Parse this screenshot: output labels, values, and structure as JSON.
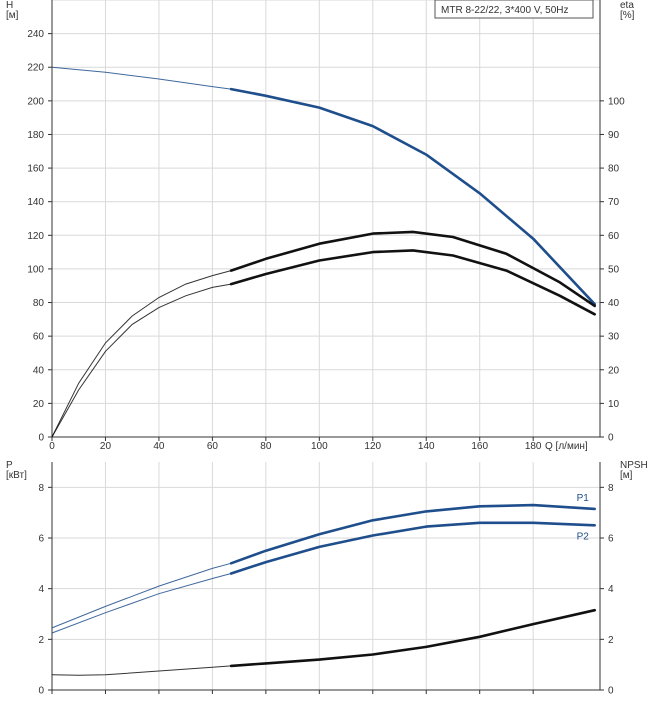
{
  "colors": {
    "blue": "#1f4e8c",
    "black": "#111111",
    "grid": "#d9d9d9"
  },
  "chart_data": [
    {
      "type": "line",
      "legend_box": "MTR 8-22/22, 3*400 V, 50Hz",
      "xlabel": "Q [л/мин]",
      "ylabel_left": [
        "H",
        "[м]"
      ],
      "ylabel_right": [
        "eta",
        "[%]"
      ],
      "xlim": [
        0,
        205
      ],
      "ylim_left": [
        0,
        260
      ],
      "ylim_right": [
        0,
        130
      ],
      "x_ticks": [
        "0",
        "20",
        "40",
        "60",
        "80",
        "100",
        "120",
        "140",
        "160",
        "180"
      ],
      "y_left_ticks": [
        "0",
        "20",
        "40",
        "60",
        "80",
        "100",
        "120",
        "140",
        "160",
        "180",
        "200",
        "220",
        "240"
      ],
      "y_right_ticks": [
        "0",
        "10",
        "20",
        "30",
        "40",
        "50",
        "60",
        "70",
        "80",
        "90",
        "100"
      ],
      "grid": true,
      "duty_range": [
        67,
        203
      ],
      "series": [
        {
          "axis": "left",
          "color": "blue",
          "x": [
            0,
            20,
            40,
            60,
            67,
            80,
            100,
            120,
            140,
            160,
            180,
            203
          ],
          "y": [
            220,
            217,
            213,
            208.5,
            207,
            203,
            196,
            185,
            168,
            145,
            118,
            79
          ]
        },
        {
          "axis": "right",
          "color": "black",
          "x": [
            0,
            10,
            20,
            30,
            40,
            50,
            60,
            67,
            80,
            100,
            120,
            135,
            150,
            170,
            190,
            203
          ],
          "y": [
            0,
            16,
            28,
            36,
            41.5,
            45.5,
            48,
            49.5,
            53,
            57.5,
            60.5,
            61,
            59.5,
            54.5,
            46,
            39
          ]
        },
        {
          "axis": "right",
          "color": "black",
          "x": [
            0,
            10,
            20,
            30,
            40,
            50,
            60,
            67,
            80,
            100,
            120,
            135,
            150,
            170,
            190,
            203
          ],
          "y": [
            0,
            14,
            25.5,
            33.5,
            38.5,
            42,
            44.5,
            45.5,
            48.5,
            52.5,
            55,
            55.5,
            54,
            49.5,
            42,
            36.5
          ]
        }
      ]
    },
    {
      "type": "line",
      "xlabel": "",
      "ylabel_left": [
        "P",
        "[кВт]"
      ],
      "ylabel_right": [
        "NPSH",
        "[м]"
      ],
      "xlim": [
        0,
        205
      ],
      "ylim_left": [
        0,
        9
      ],
      "ylim_right": [
        0,
        9
      ],
      "y_left_ticks": [
        "0",
        "2",
        "4",
        "6",
        "8"
      ],
      "y_right_ticks": [
        "0",
        "2",
        "4",
        "6",
        "8"
      ],
      "grid": true,
      "duty_range": [
        67,
        203
      ],
      "series": [
        {
          "name": "P1",
          "axis": "left",
          "color": "blue",
          "x": [
            0,
            20,
            40,
            60,
            67,
            80,
            100,
            120,
            140,
            160,
            180,
            203
          ],
          "y": [
            2.45,
            3.3,
            4.1,
            4.8,
            5.0,
            5.5,
            6.15,
            6.7,
            7.05,
            7.25,
            7.3,
            7.15
          ]
        },
        {
          "name": "P2",
          "axis": "left",
          "color": "blue",
          "x": [
            0,
            20,
            40,
            60,
            67,
            80,
            100,
            120,
            140,
            160,
            180,
            203
          ],
          "y": [
            2.25,
            3.05,
            3.8,
            4.4,
            4.6,
            5.05,
            5.65,
            6.1,
            6.45,
            6.6,
            6.6,
            6.5
          ]
        },
        {
          "axis": "right",
          "color": "black",
          "x": [
            0,
            10,
            20,
            40,
            60,
            67,
            80,
            100,
            120,
            140,
            160,
            180,
            203
          ],
          "y": [
            0.6,
            0.58,
            0.6,
            0.75,
            0.9,
            0.95,
            1.05,
            1.2,
            1.4,
            1.7,
            2.1,
            2.6,
            3.15
          ]
        }
      ]
    }
  ]
}
